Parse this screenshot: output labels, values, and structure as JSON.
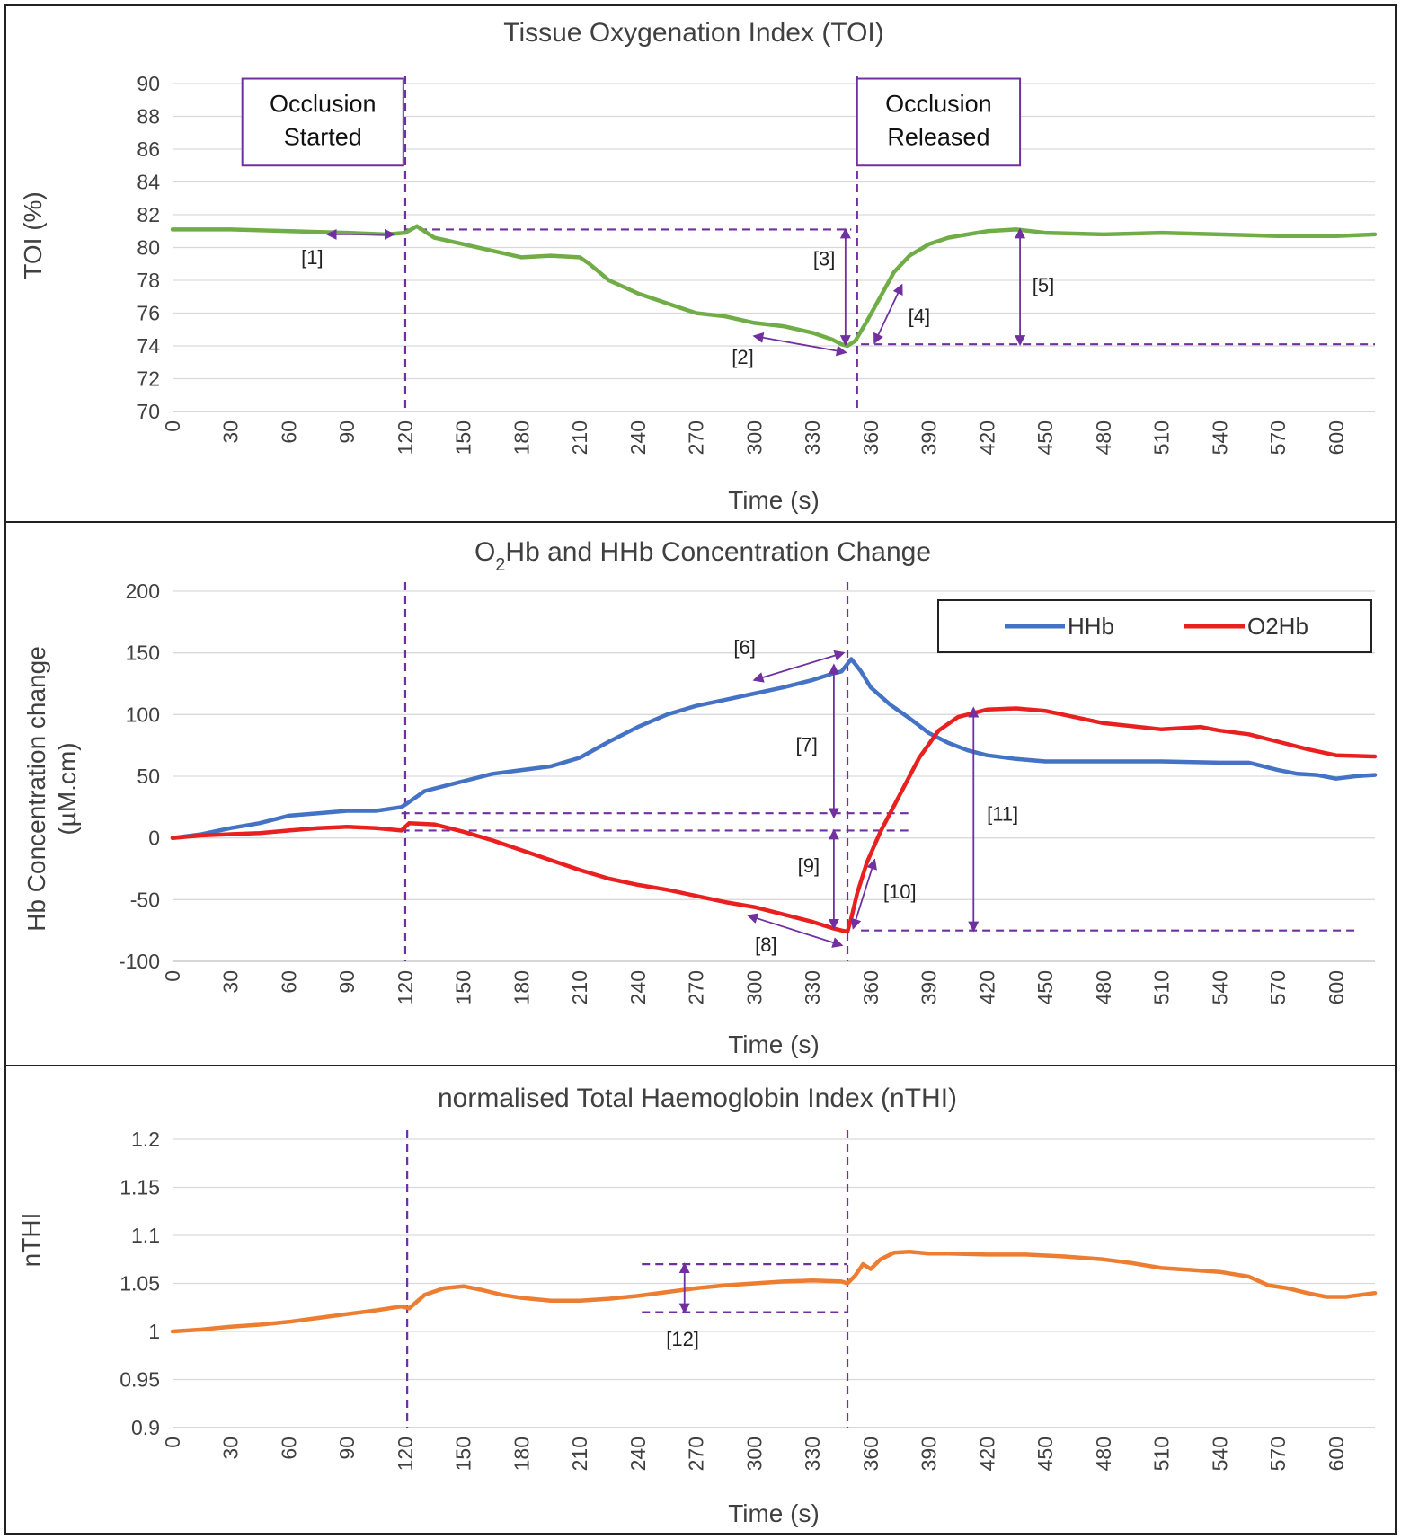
{
  "chart_data": [
    {
      "type": "line",
      "title": "Tissue Oxygenation Index (TOI)",
      "xlabel": "Time (s)",
      "ylabel": "TOI (%)",
      "xlim": [
        0,
        620
      ],
      "ylim": [
        70,
        90
      ],
      "yticks": [
        70,
        72,
        74,
        76,
        78,
        80,
        82,
        84,
        86,
        88,
        90
      ],
      "ytick_labels": [
        "70",
        "72",
        "74",
        "76",
        "78",
        "80",
        "82",
        "84",
        "86",
        "88",
        "90"
      ],
      "xticks": [
        0,
        30,
        60,
        90,
        120,
        150,
        180,
        210,
        240,
        270,
        300,
        330,
        360,
        390,
        420,
        450,
        480,
        510,
        540,
        570,
        600
      ],
      "xtick_labels": [
        "0",
        "30",
        "60",
        "90",
        "120",
        "150",
        "180",
        "210",
        "240",
        "270",
        "300",
        "330",
        "360",
        "390",
        "420",
        "450",
        "480",
        "510",
        "540",
        "570",
        "600"
      ],
      "grid": true,
      "series": [
        {
          "name": "TOI",
          "color": "#70ad47",
          "x": [
            0,
            30,
            60,
            90,
            110,
            120,
            126,
            135,
            150,
            165,
            180,
            195,
            210,
            215,
            225,
            240,
            255,
            270,
            285,
            300,
            315,
            330,
            340,
            345,
            348,
            352,
            358,
            365,
            372,
            380,
            390,
            400,
            410,
            420,
            435,
            450,
            480,
            510,
            540,
            570,
            600,
            620
          ],
          "y": [
            81.1,
            81.1,
            81.0,
            80.9,
            80.8,
            80.9,
            81.3,
            80.6,
            80.2,
            79.8,
            79.4,
            79.5,
            79.4,
            79.0,
            78.0,
            77.2,
            76.6,
            76.0,
            75.8,
            75.4,
            75.2,
            74.8,
            74.4,
            74.1,
            74.0,
            74.3,
            75.5,
            77.0,
            78.5,
            79.5,
            80.2,
            80.6,
            80.8,
            81.0,
            81.1,
            80.9,
            80.8,
            80.9,
            80.8,
            80.7,
            80.7,
            80.8
          ]
        }
      ],
      "annotations": [
        {
          "label": "Occlusion Started",
          "line1": "Occlusion",
          "line2": "Started",
          "x_from": 36,
          "x_to": 119,
          "y_top": 90.3,
          "y_bottom": 85.0
        },
        {
          "label": "Occlusion Released",
          "line1": "Occlusion",
          "line2": "Released",
          "x_from": 353,
          "x_to": 437,
          "y_top": 90.3,
          "y_bottom": 85.0
        },
        {
          "text": "[1]",
          "x": 72,
          "y": 79.0
        },
        {
          "text": "[2]",
          "x": 294,
          "y": 72.9
        },
        {
          "text": "[3]",
          "x": 336,
          "y": 78.9
        },
        {
          "text": "[4]",
          "x": 385,
          "y": 75.4
        },
        {
          "text": "[5]",
          "x": 449,
          "y": 77.3
        }
      ],
      "vlines": [
        120,
        353
      ],
      "hlines": [
        {
          "y": 81.1,
          "x_from": 120,
          "x_to": 350
        },
        {
          "y": 74.1,
          "x_from": 355,
          "x_to": 620
        }
      ],
      "arrows": [
        {
          "type": "double",
          "x1": 80,
          "y1": 80.8,
          "x2": 114,
          "y2": 80.8
        },
        {
          "type": "double",
          "x1": 300,
          "y1": 74.6,
          "x2": 347,
          "y2": 73.6
        },
        {
          "type": "double",
          "x1": 347,
          "y1": 81.1,
          "x2": 347,
          "y2": 74.1
        },
        {
          "type": "double",
          "x1": 362,
          "y1": 74.2,
          "x2": 376,
          "y2": 77.7
        },
        {
          "type": "double",
          "x1": 437,
          "y1": 81.1,
          "x2": 437,
          "y2": 74.1
        }
      ]
    },
    {
      "type": "line",
      "title_main": "O",
      "title_sub": "2",
      "title_rest": "Hb and HHb Concentration Change",
      "xlabel": "Time (s)",
      "ylabel_line1": "Hb Concentration change",
      "ylabel_line2": "(µM.cm)",
      "xlim": [
        0,
        620
      ],
      "ylim": [
        -100,
        200
      ],
      "yticks": [
        -100,
        -50,
        0,
        50,
        100,
        150,
        200
      ],
      "ytick_labels": [
        "-100",
        "-50",
        "0",
        "50",
        "100",
        "150",
        "200"
      ],
      "xticks": [
        0,
        30,
        60,
        90,
        120,
        150,
        180,
        210,
        240,
        270,
        300,
        330,
        360,
        390,
        420,
        450,
        480,
        510,
        540,
        570,
        600
      ],
      "xtick_labels": [
        "0",
        "30",
        "60",
        "90",
        "120",
        "150",
        "180",
        "210",
        "240",
        "270",
        "300",
        "330",
        "360",
        "390",
        "420",
        "450",
        "480",
        "510",
        "540",
        "570",
        "600"
      ],
      "grid": true,
      "legend": "top-right",
      "series": [
        {
          "name": "HHb",
          "color": "#4472c4",
          "x": [
            0,
            15,
            30,
            45,
            60,
            75,
            90,
            105,
            118,
            121,
            130,
            150,
            165,
            180,
            195,
            210,
            225,
            240,
            255,
            270,
            285,
            300,
            315,
            330,
            340,
            345,
            350,
            355,
            360,
            370,
            380,
            390,
            400,
            410,
            420,
            435,
            450,
            480,
            510,
            540,
            555,
            570,
            580,
            590,
            600,
            610,
            620
          ],
          "y": [
            0,
            3,
            8,
            12,
            18,
            20,
            22,
            22,
            25,
            28,
            38,
            46,
            52,
            55,
            58,
            65,
            78,
            90,
            100,
            107,
            112,
            117,
            122,
            128,
            133,
            135,
            145,
            135,
            122,
            108,
            97,
            85,
            77,
            71,
            67,
            64,
            62,
            62,
            62,
            61,
            61,
            55,
            52,
            51,
            48,
            50,
            51
          ]
        },
        {
          "name": "O2Hb",
          "color": "#e8201f",
          "x": [
            0,
            15,
            30,
            45,
            60,
            75,
            90,
            105,
            118,
            122,
            135,
            150,
            165,
            180,
            195,
            210,
            225,
            240,
            255,
            270,
            285,
            300,
            315,
            330,
            340,
            345,
            348,
            350,
            353,
            358,
            365,
            375,
            385,
            395,
            405,
            420,
            435,
            450,
            480,
            510,
            530,
            540,
            555,
            570,
            585,
            600,
            620
          ],
          "y": [
            0,
            2,
            3,
            4,
            6,
            8,
            9,
            8,
            6,
            12,
            11,
            5,
            -2,
            -10,
            -18,
            -26,
            -33,
            -38,
            -42,
            -47,
            -52,
            -56,
            -62,
            -68,
            -73,
            -75,
            -76,
            -65,
            -45,
            -20,
            5,
            35,
            65,
            87,
            98,
            104,
            105,
            103,
            93,
            88,
            90,
            87,
            84,
            78,
            72,
            67,
            66
          ]
        }
      ],
      "annotations": [
        {
          "text": "[6]",
          "x": 295,
          "y": 149
        },
        {
          "text": "[7]",
          "x": 327,
          "y": 70
        },
        {
          "text": "[8]",
          "x": 306,
          "y": -92
        },
        {
          "text": "[9]",
          "x": 328,
          "y": -28
        },
        {
          "text": "[10]",
          "x": 375,
          "y": -49
        },
        {
          "text": "[11]",
          "x": 428,
          "y": 14
        }
      ],
      "vlines": [
        120,
        348
      ],
      "hlines": [
        {
          "y": 20,
          "x_from": 118,
          "x_to": 382
        },
        {
          "y": 6,
          "x_from": 118,
          "x_to": 382
        },
        {
          "y": -75,
          "x_from": 355,
          "x_to": 612
        }
      ],
      "arrows": [
        {
          "type": "double",
          "x1": 300,
          "y1": 128,
          "x2": 346,
          "y2": 150
        },
        {
          "type": "double",
          "x1": 341,
          "y1": 140,
          "x2": 341,
          "y2": 17
        },
        {
          "type": "double",
          "x1": 297,
          "y1": -63,
          "x2": 345,
          "y2": -87
        },
        {
          "type": "double",
          "x1": 341,
          "y1": 6,
          "x2": 341,
          "y2": -73
        },
        {
          "type": "double",
          "x1": 351,
          "y1": -73,
          "x2": 362,
          "y2": -18
        },
        {
          "type": "double",
          "x1": 413,
          "y1": 105,
          "x2": 413,
          "y2": -75
        }
      ]
    },
    {
      "type": "line",
      "title": "normalised Total Haemoglobin Index (nTHI)",
      "xlabel": "Time (s)",
      "ylabel": "nTHI",
      "xlim": [
        0,
        620
      ],
      "ylim": [
        0.9,
        1.2
      ],
      "yticks": [
        0.9,
        0.95,
        1.0,
        1.05,
        1.1,
        1.15,
        1.2
      ],
      "ytick_labels": [
        "0.9",
        "0.95",
        "1",
        "1.05",
        "1.1",
        "1.15",
        "1.2"
      ],
      "xticks": [
        0,
        30,
        60,
        90,
        120,
        150,
        180,
        210,
        240,
        270,
        300,
        330,
        360,
        390,
        420,
        450,
        480,
        510,
        540,
        570,
        600
      ],
      "xtick_labels": [
        "0",
        "30",
        "60",
        "90",
        "120",
        "150",
        "180",
        "210",
        "240",
        "270",
        "300",
        "330",
        "360",
        "390",
        "420",
        "450",
        "480",
        "510",
        "540",
        "570",
        "600"
      ],
      "grid": true,
      "series": [
        {
          "name": "nTHI",
          "color": "#ed7d31",
          "x": [
            0,
            15,
            30,
            45,
            60,
            75,
            90,
            105,
            118,
            122,
            130,
            140,
            150,
            160,
            170,
            180,
            195,
            210,
            225,
            240,
            255,
            270,
            285,
            300,
            315,
            330,
            345,
            348,
            352,
            356,
            360,
            365,
            372,
            380,
            390,
            400,
            420,
            440,
            460,
            480,
            495,
            510,
            525,
            540,
            555,
            565,
            575,
            585,
            595,
            605,
            620
          ],
          "y": [
            1.0,
            1.002,
            1.005,
            1.007,
            1.01,
            1.014,
            1.018,
            1.022,
            1.026,
            1.024,
            1.038,
            1.045,
            1.047,
            1.043,
            1.038,
            1.035,
            1.032,
            1.032,
            1.034,
            1.037,
            1.041,
            1.045,
            1.048,
            1.05,
            1.052,
            1.053,
            1.052,
            1.05,
            1.058,
            1.07,
            1.065,
            1.075,
            1.082,
            1.083,
            1.081,
            1.081,
            1.08,
            1.08,
            1.078,
            1.075,
            1.071,
            1.066,
            1.064,
            1.062,
            1.057,
            1.048,
            1.045,
            1.04,
            1.036,
            1.036,
            1.04
          ]
        }
      ],
      "annotations": [
        {
          "text": "[12]",
          "x": 263,
          "y": 0.985
        }
      ],
      "vlines": [
        121,
        348
      ],
      "hlines": [
        {
          "y": 1.07,
          "x_from": 242,
          "x_to": 348
        },
        {
          "y": 1.02,
          "x_from": 242,
          "x_to": 348
        }
      ],
      "arrows": [
        {
          "type": "double",
          "x1": 264,
          "y1": 1.07,
          "x2": 264,
          "y2": 1.02
        }
      ]
    }
  ],
  "legend": {
    "hhb_label": "HHb",
    "o2hb_label": "O2Hb"
  },
  "style": {
    "annotation_color": "#7030a0",
    "grid_color": "#d9d9d9",
    "axis_color": "#bfbfbf"
  }
}
